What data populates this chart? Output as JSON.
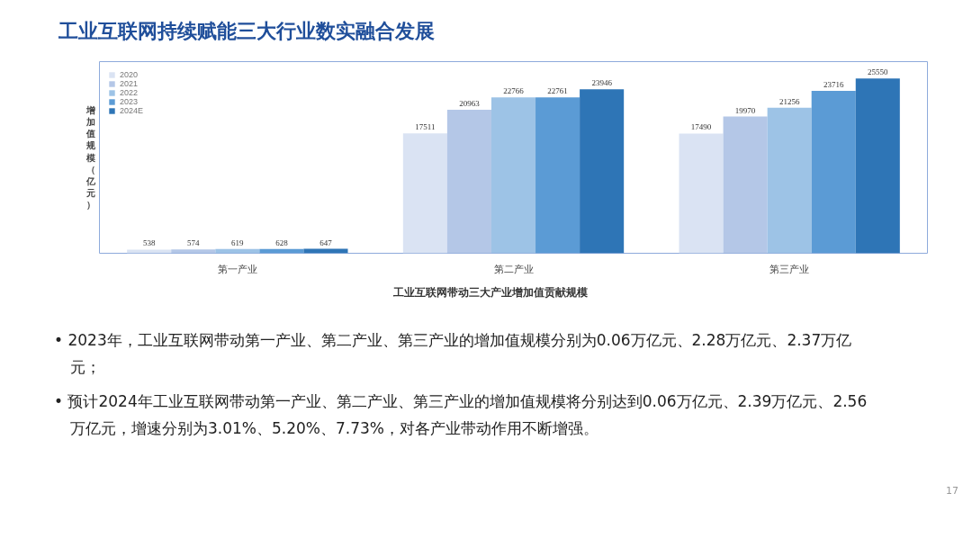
{
  "chart_data": {
    "type": "bar",
    "title": "工业互联网持续赋能三大行业数实融合发展",
    "ylabel": "增加值规模（亿元）",
    "categories": [
      "第一产业",
      "第二产业",
      "第三产业"
    ],
    "series": [
      {
        "name": "2020",
        "color": "#dae3f3",
        "values": [
          538,
          17511,
          17490
        ]
      },
      {
        "name": "2021",
        "color": "#b4c7e7",
        "values": [
          574,
          20963,
          19970
        ]
      },
      {
        "name": "2022",
        "color": "#9dc3e6",
        "values": [
          619,
          22766,
          21256
        ]
      },
      {
        "name": "2023",
        "color": "#5b9bd5",
        "values": [
          628,
          22761,
          23716
        ]
      },
      {
        "name": "2024E",
        "color": "#2e75b6",
        "values": [
          647,
          23946,
          25550
        ]
      }
    ],
    "ylim": [
      0,
      28000
    ],
    "data_labels": true,
    "legend": "top left",
    "grid": false,
    "tick_labels": "x",
    "annotations": [
      "工业互联网带动三大产业增加值贡献规模",
      "• 2023年，工业互联网带动第一产业、第二产业、第三产业的增加值规模分别为0.06万亿元、2.28万亿元、2.37万亿元；",
      "• 预计2024年工业互联网带动第一产业、第二产业、第三产业的增加值规模将分别达到0.06万亿元、2.39万亿元、2.56万亿元，增速分别为3.01%、5.20%、7.73%，对各产业带动作用不断增强。",
      "17"
    ]
  }
}
